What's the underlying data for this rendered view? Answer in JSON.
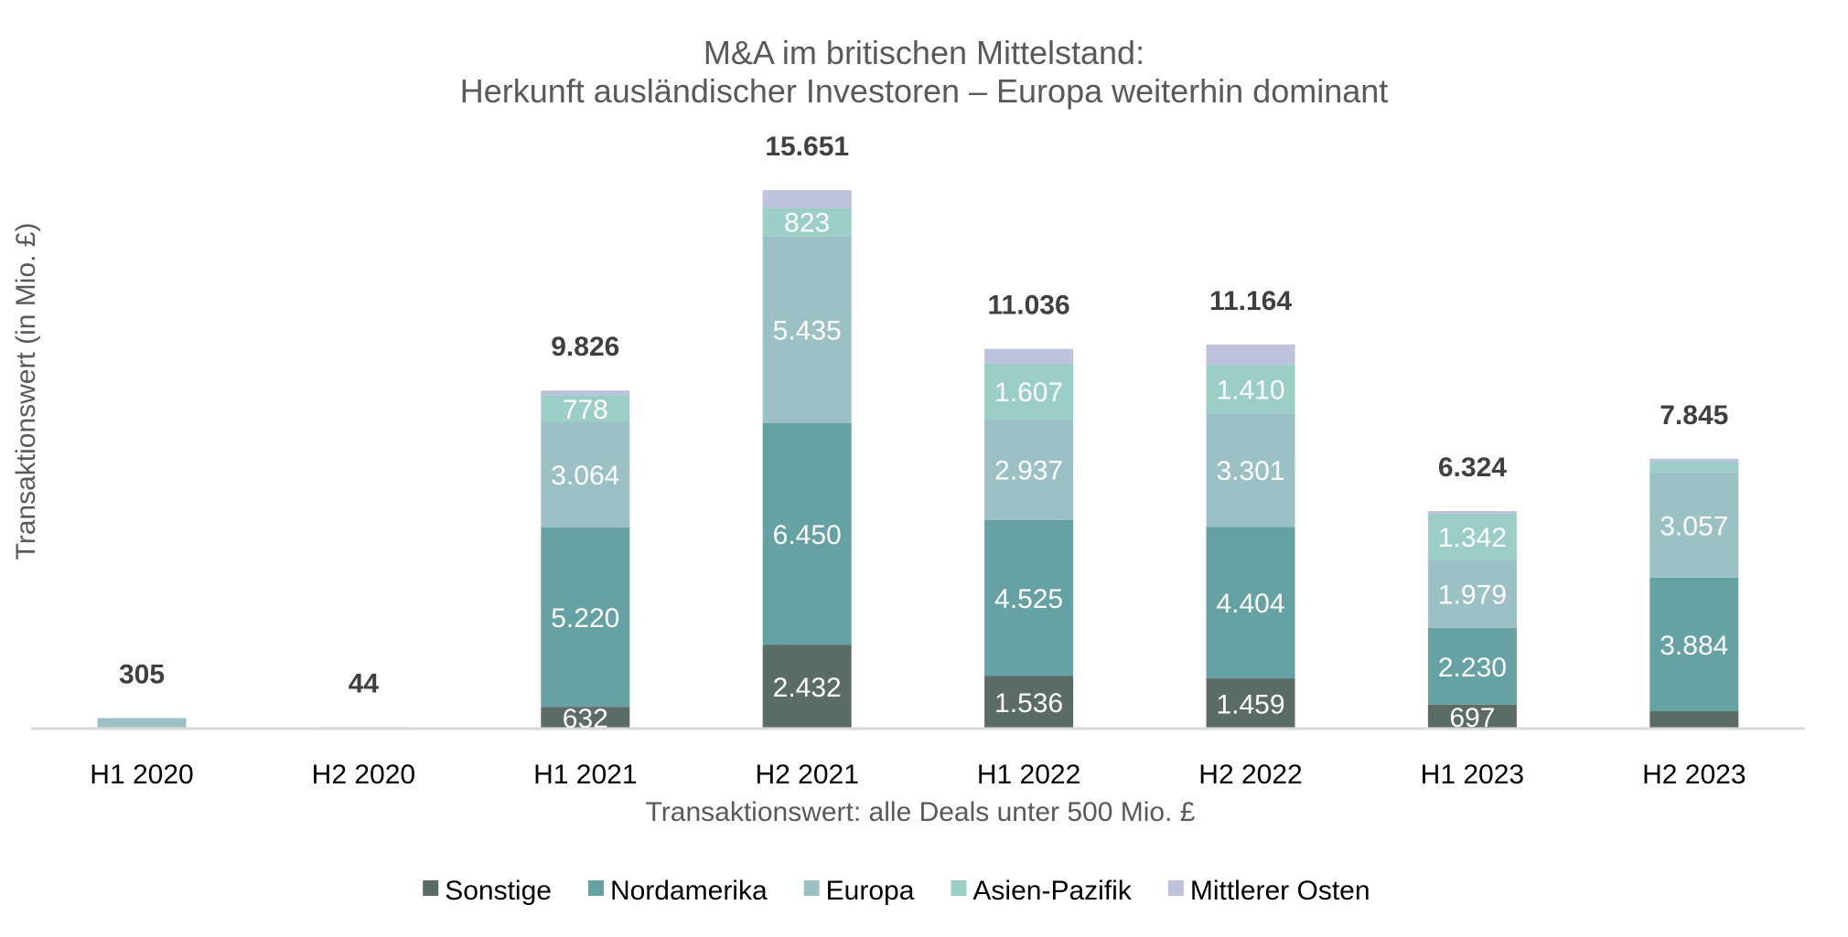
{
  "chart_data": {
    "type": "bar",
    "stacked": true,
    "title": [
      "M&A im britischen Mittelstand:",
      "Herkunft ausländischer Investoren – Europa weiterhin dominant"
    ],
    "xlabel": "Transaktionswert: alle Deals unter 500 Mio. £",
    "ylabel": "Transaktionswert (in Mio. £)",
    "ylim": [
      0,
      16000
    ],
    "grid": false,
    "legend_position": "bottom",
    "categories": [
      "H1 2020",
      "H2 2020",
      "H1 2021",
      "H2 2021",
      "H1 2022",
      "H2 2022",
      "H1 2023",
      "H2 2023"
    ],
    "series": [
      {
        "name": "Sonstige",
        "color": "#5B6B66",
        "values": [
          0,
          0,
          632,
          2432,
          1536,
          1459,
          697,
          504
        ],
        "labels": [
          "",
          "",
          "632",
          "2.432",
          "1.536",
          "1.459",
          "697",
          ""
        ]
      },
      {
        "name": "Nordamerika",
        "color": "#66A2A4",
        "values": [
          0,
          0,
          5220,
          6450,
          4525,
          4404,
          2230,
          3884
        ],
        "labels": [
          "",
          "",
          "5.220",
          "6.450",
          "4.525",
          "4.404",
          "2.230",
          "3.884"
        ]
      },
      {
        "name": "Europa",
        "color": "#9CC1C4",
        "values": [
          305,
          0,
          3064,
          5435,
          2937,
          3301,
          1979,
          3057
        ],
        "labels": [
          "",
          "",
          "3.064",
          "5.435",
          "2.937",
          "3.301",
          "1.979",
          "3.057"
        ]
      },
      {
        "name": "Asien-Pazifik",
        "color": "#9BCEC6",
        "values": [
          0,
          44,
          778,
          823,
          1607,
          1410,
          1342,
          300
        ],
        "labels": [
          "",
          "",
          "778",
          "823",
          "1.607",
          "1.410",
          "1.342",
          ""
        ]
      },
      {
        "name": "Mittlerer Osten",
        "color": "#BDC2DD",
        "values": [
          0,
          0,
          132,
          511,
          431,
          590,
          76,
          100
        ],
        "labels": [
          "",
          "",
          "",
          "",
          "",
          "",
          "",
          ""
        ]
      }
    ],
    "totals": [
      305,
      44,
      9826,
      15651,
      11036,
      11164,
      6324,
      7845
    ],
    "total_labels": [
      "305",
      "44",
      "9.826",
      "15.651",
      "11.036",
      "11.164",
      "6.324",
      "7.845"
    ]
  },
  "axis_color": "#D9D9D9"
}
